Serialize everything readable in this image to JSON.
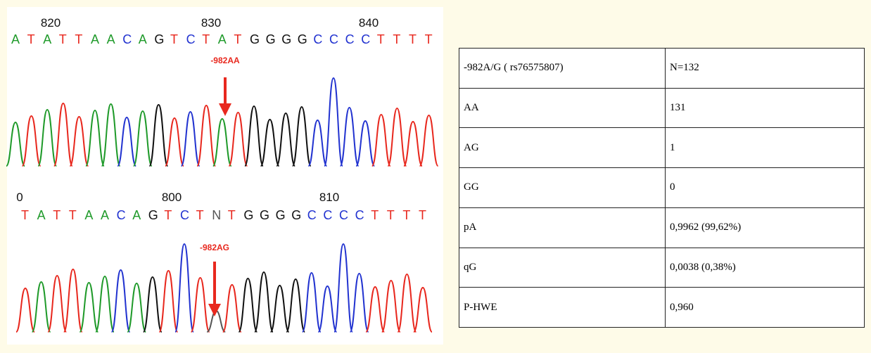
{
  "panels": [
    {
      "positions": [
        "820",
        "830",
        "840"
      ],
      "sequence": "ATATTAACAGTCTATGGGGCCCCTTTT",
      "label": "-982AA"
    },
    {
      "positions": [
        "0",
        "800",
        "810"
      ],
      "sequence": "TATTAACAGTCTNTGGGGCCCCTTTT",
      "label": "-982AG"
    }
  ],
  "base_colors": {
    "A": "#1f9a2a",
    "T": "#e8281e",
    "C": "#2233d0",
    "G": "#111111",
    "N": "#555555"
  },
  "table": {
    "rows": [
      [
        "-982A/G ( rs76575807)",
        "N=132"
      ],
      [
        "AA",
        "131"
      ],
      [
        "AG",
        "1"
      ],
      [
        "GG",
        "0"
      ],
      [
        "pA",
        "0,9962 (99,62%)"
      ],
      [
        "qG",
        "0,0038 (0,38%)"
      ],
      [
        "P-HWE",
        "0,960"
      ]
    ]
  }
}
